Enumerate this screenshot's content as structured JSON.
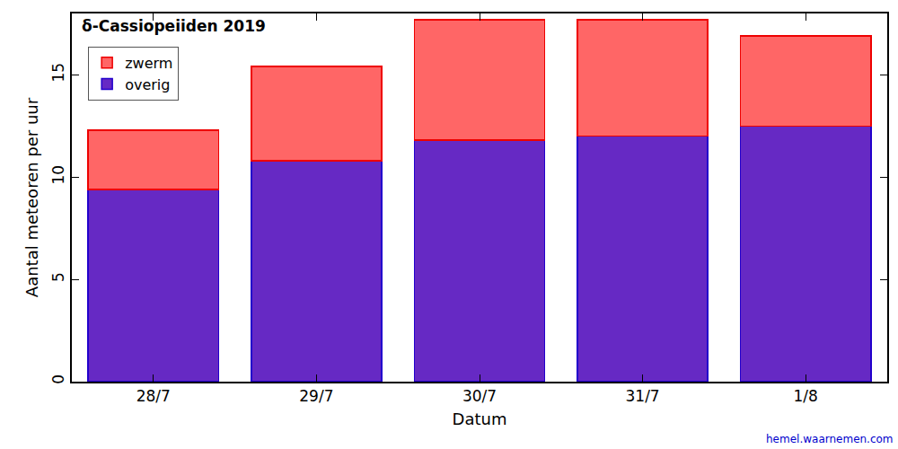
{
  "chart_data": {
    "type": "bar",
    "title": "δ-Cassiopeiiden 2019",
    "x_label": "Datum",
    "y_label": "Aantal meteoren per uur",
    "annotations": [
      "hemel.waarnemen.com"
    ],
    "categories": [
      "28/7",
      "29/7",
      "30/7",
      "31/7",
      "1/8"
    ],
    "series": [
      {
        "name": "overig",
        "color": "#6629c4",
        "values": [
          9.4,
          10.8,
          11.8,
          12.0,
          12.5
        ]
      },
      {
        "name": "zwerm",
        "color": "#ff6666",
        "values": [
          2.9,
          4.6,
          5.9,
          5.7,
          4.4
        ]
      }
    ],
    "stacked": true,
    "ylim": [
      0,
      18
    ],
    "yticks": [
      0,
      5,
      10,
      15
    ],
    "grid": false,
    "legend": "upper left"
  }
}
